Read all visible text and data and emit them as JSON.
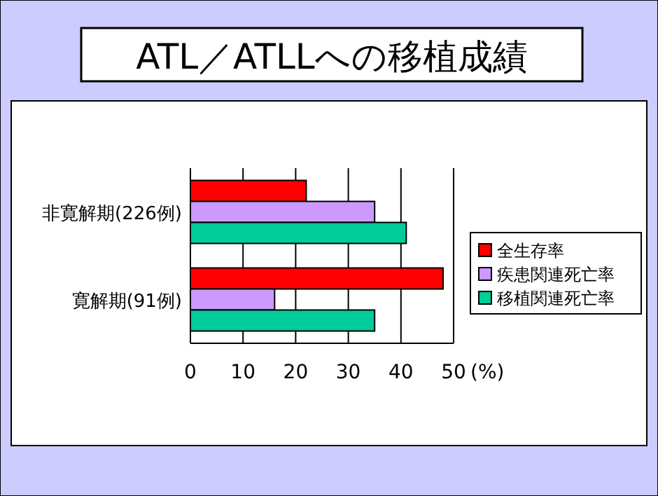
{
  "chart_data": {
    "type": "bar",
    "orientation": "horizontal",
    "title": "ATL／ATLLへの移植成績",
    "xlabel": "(%)",
    "categories": [
      "非寛解期(226例)",
      "寛解期(91例)"
    ],
    "series": [
      {
        "name": "全生存率",
        "color": "#ff0000",
        "values": [
          22,
          48
        ]
      },
      {
        "name": "疾患関連死亡率",
        "color": "#cc99ff",
        "values": [
          35,
          16
        ]
      },
      {
        "name": "移植関連死亡率",
        "color": "#00cc99",
        "values": [
          41,
          35
        ]
      }
    ],
    "xlim": [
      0,
      50
    ],
    "xticks": [
      0,
      10,
      20,
      30,
      40,
      50
    ],
    "grid": "x",
    "legend": "right"
  }
}
